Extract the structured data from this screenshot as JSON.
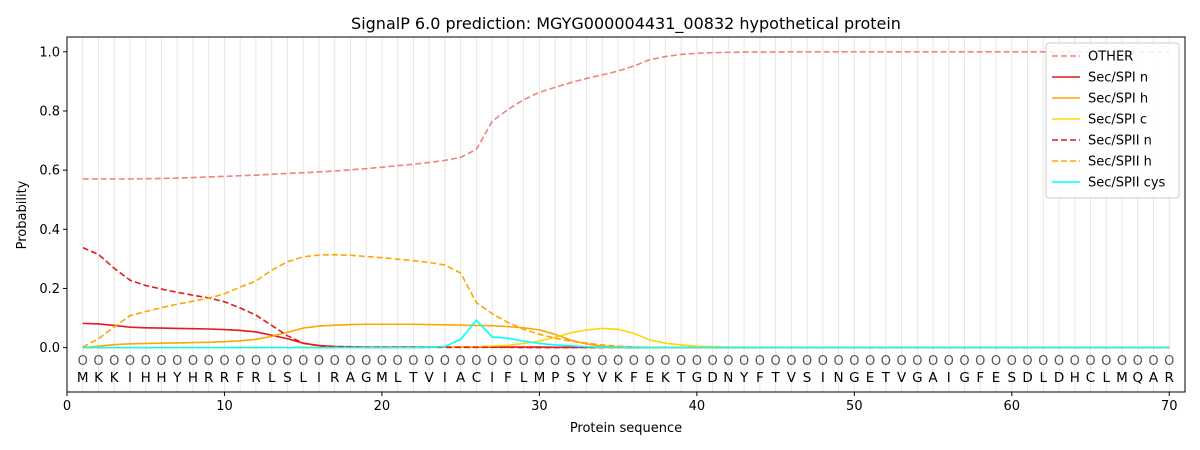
{
  "chart_data": {
    "type": "line",
    "title": "SignalP 6.0 prediction: MGYG000004431_00832 hypothetical protein",
    "xlabel": "Protein sequence",
    "ylabel": "Probability",
    "xlim": [
      0,
      71
    ],
    "ylim": [
      -0.15,
      1.05
    ],
    "x_ticks": [
      0,
      10,
      20,
      30,
      40,
      50,
      60,
      70
    ],
    "y_ticks": [
      0.0,
      0.2,
      0.4,
      0.6,
      0.8,
      1.0
    ],
    "x_tick_labels": [
      "0",
      "10",
      "20",
      "30",
      "40",
      "50",
      "60",
      "70"
    ],
    "y_tick_labels": [
      "0.0",
      "0.2",
      "0.4",
      "0.6",
      "0.8",
      "1.0"
    ],
    "grid": "vertical lines at each residue",
    "legend_position": "top-right",
    "sequence": [
      "M",
      "K",
      "K",
      "I",
      "H",
      "H",
      "Y",
      "H",
      "R",
      "R",
      "F",
      "R",
      "L",
      "S",
      "L",
      "I",
      "R",
      "A",
      "G",
      "M",
      "L",
      "T",
      "V",
      "I",
      "A",
      "C",
      "I",
      "F",
      "L",
      "M",
      "P",
      "S",
      "Y",
      "V",
      "K",
      "F",
      "E",
      "K",
      "T",
      "G",
      "D",
      "N",
      "Y",
      "F",
      "T",
      "V",
      "S",
      "I",
      "N",
      "G",
      "E",
      "T",
      "V",
      "G",
      "A",
      "I",
      "G",
      "F",
      "E",
      "S",
      "D",
      "L",
      "D",
      "H",
      "C",
      "L",
      "M",
      "Q",
      "A",
      "R"
    ],
    "marker_glyph": "O",
    "series": [
      {
        "name": "OTHER",
        "color": "#f08080",
        "dash": "dashed",
        "values": [
          0.57,
          0.57,
          0.57,
          0.57,
          0.571,
          0.572,
          0.573,
          0.575,
          0.577,
          0.579,
          0.581,
          0.583,
          0.586,
          0.589,
          0.591,
          0.594,
          0.597,
          0.601,
          0.605,
          0.61,
          0.615,
          0.62,
          0.626,
          0.633,
          0.643,
          0.67,
          0.765,
          0.805,
          0.838,
          0.863,
          0.88,
          0.896,
          0.91,
          0.922,
          0.935,
          0.952,
          0.973,
          0.984,
          0.991,
          0.995,
          0.997,
          0.998,
          0.999,
          0.999,
          0.999,
          1.0,
          1.0,
          1.0,
          1.0,
          1.0,
          1.0,
          1.0,
          1.0,
          1.0,
          1.0,
          1.0,
          1.0,
          1.0,
          1.0,
          1.0,
          1.0,
          1.0,
          1.0,
          1.0,
          1.0,
          1.0,
          1.0,
          1.0,
          1.0,
          1.0
        ]
      },
      {
        "name": "Sec/SPI n",
        "color": "#e41a1c",
        "dash": "solid",
        "values": [
          0.082,
          0.08,
          0.075,
          0.069,
          0.067,
          0.066,
          0.065,
          0.064,
          0.063,
          0.061,
          0.058,
          0.053,
          0.042,
          0.03,
          0.015,
          0.007,
          0.004,
          0.003,
          0.002,
          0.002,
          0.002,
          0.002,
          0.002,
          0.002,
          0.002,
          0.002,
          0.002,
          0.002,
          0.002,
          0.002,
          0.001,
          0.001,
          0.001,
          0.001,
          0.001,
          0,
          0,
          0,
          0,
          0,
          0,
          0,
          0,
          0,
          0,
          0,
          0,
          0,
          0,
          0,
          0,
          0,
          0,
          0,
          0,
          0,
          0,
          0,
          0,
          0,
          0,
          0,
          0,
          0,
          0,
          0,
          0,
          0,
          0,
          0
        ]
      },
      {
        "name": "Sec/SPI h",
        "color": "#ffa500",
        "dash": "solid",
        "values": [
          0.0,
          0.005,
          0.01,
          0.013,
          0.014,
          0.015,
          0.016,
          0.017,
          0.018,
          0.02,
          0.023,
          0.028,
          0.038,
          0.052,
          0.066,
          0.073,
          0.076,
          0.078,
          0.079,
          0.079,
          0.079,
          0.079,
          0.078,
          0.077,
          0.076,
          0.075,
          0.074,
          0.071,
          0.067,
          0.06,
          0.045,
          0.025,
          0.012,
          0.005,
          0.002,
          0.001,
          0,
          0,
          0,
          0,
          0,
          0,
          0,
          0,
          0,
          0,
          0,
          0,
          0,
          0,
          0,
          0,
          0,
          0,
          0,
          0,
          0,
          0,
          0,
          0,
          0,
          0,
          0,
          0,
          0,
          0,
          0,
          0,
          0,
          0
        ]
      },
      {
        "name": "Sec/SPI c",
        "color": "#ffd700",
        "dash": "solid",
        "values": [
          0,
          0,
          0,
          0,
          0,
          0,
          0,
          0,
          0,
          0,
          0,
          0,
          0,
          0,
          0.001,
          0.001,
          0.001,
          0.001,
          0.001,
          0.001,
          0.001,
          0.001,
          0.001,
          0.002,
          0.002,
          0.003,
          0.005,
          0.008,
          0.014,
          0.022,
          0.035,
          0.05,
          0.06,
          0.065,
          0.062,
          0.048,
          0.026,
          0.015,
          0.009,
          0.005,
          0.003,
          0.002,
          0.001,
          0.001,
          0,
          0,
          0,
          0,
          0,
          0,
          0,
          0,
          0,
          0,
          0,
          0,
          0,
          0,
          0,
          0,
          0,
          0,
          0,
          0,
          0,
          0,
          0,
          0,
          0,
          0
        ]
      },
      {
        "name": "Sec/SPII n",
        "color": "#e41a1c",
        "dash": "dashed",
        "values": [
          0.338,
          0.315,
          0.268,
          0.228,
          0.21,
          0.198,
          0.187,
          0.177,
          0.168,
          0.155,
          0.134,
          0.11,
          0.075,
          0.04,
          0.015,
          0.006,
          0.003,
          0.002,
          0.001,
          0.001,
          0.001,
          0.001,
          0.001,
          0.001,
          0.001,
          0.001,
          0.001,
          0.001,
          0,
          0,
          0,
          0,
          0,
          0,
          0,
          0,
          0,
          0,
          0,
          0,
          0,
          0,
          0,
          0,
          0,
          0,
          0,
          0,
          0,
          0,
          0,
          0,
          0,
          0,
          0,
          0,
          0,
          0,
          0,
          0,
          0,
          0,
          0,
          0,
          0,
          0,
          0,
          0,
          0,
          0
        ]
      },
      {
        "name": "Sec/SPII h",
        "color": "#ffa500",
        "dash": "dashed",
        "values": [
          0.002,
          0.03,
          0.07,
          0.108,
          0.122,
          0.135,
          0.147,
          0.157,
          0.167,
          0.182,
          0.205,
          0.225,
          0.262,
          0.29,
          0.307,
          0.313,
          0.314,
          0.312,
          0.308,
          0.304,
          0.299,
          0.294,
          0.288,
          0.279,
          0.252,
          0.152,
          0.115,
          0.085,
          0.062,
          0.045,
          0.032,
          0.022,
          0.015,
          0.009,
          0.005,
          0.002,
          0.001,
          0,
          0,
          0,
          0,
          0,
          0,
          0,
          0,
          0,
          0,
          0,
          0,
          0,
          0,
          0,
          0,
          0,
          0,
          0,
          0,
          0,
          0,
          0,
          0,
          0,
          0,
          0,
          0,
          0,
          0,
          0,
          0,
          0
        ]
      },
      {
        "name": "Sec/SPII cys",
        "color": "#00ffff",
        "dash": "solid",
        "values": [
          0,
          0,
          0,
          0,
          0,
          0,
          0,
          0,
          0,
          0,
          0,
          0,
          0,
          0,
          0,
          0,
          0,
          0,
          0,
          0,
          0,
          0,
          0.001,
          0.004,
          0.028,
          0.093,
          0.036,
          0.032,
          0.022,
          0.014,
          0.009,
          0.006,
          0.003,
          0.001,
          0,
          0,
          0,
          0,
          0,
          0,
          0,
          0,
          0,
          0,
          0,
          0,
          0,
          0,
          0,
          0,
          0,
          0,
          0,
          0,
          0,
          0,
          0,
          0,
          0,
          0,
          0,
          0,
          0,
          0,
          0,
          0,
          0,
          0,
          0,
          0
        ]
      }
    ]
  }
}
